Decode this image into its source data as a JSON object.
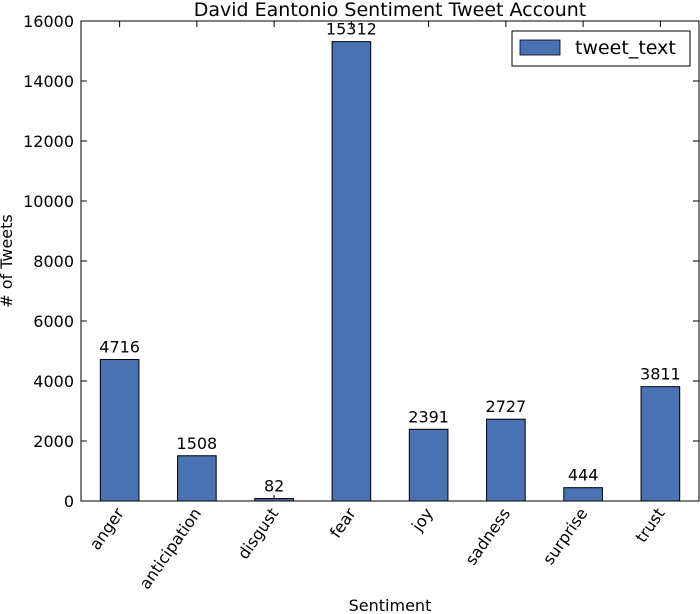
{
  "chart_data": {
    "type": "bar",
    "title": "David Eantonio Sentiment Tweet Account",
    "xlabel": "Sentiment",
    "ylabel": "# of Tweets",
    "categories": [
      "anger",
      "anticipation",
      "disgust",
      "fear",
      "joy",
      "sadness",
      "surprise",
      "trust"
    ],
    "series": [
      {
        "name": "tweet_text",
        "values": [
          4716,
          1508,
          82,
          15312,
          2391,
          2727,
          444,
          3811
        ],
        "color": "#4a71b2"
      }
    ],
    "data_labels": [
      "4716",
      "1508",
      "82",
      "15312",
      "2391",
      "2727",
      "444",
      "3811"
    ],
    "ylim": [
      0,
      16000
    ],
    "yticks": [
      0,
      2000,
      4000,
      6000,
      8000,
      10000,
      12000,
      14000,
      16000
    ],
    "legend_position": "top-right",
    "grid": false
  }
}
